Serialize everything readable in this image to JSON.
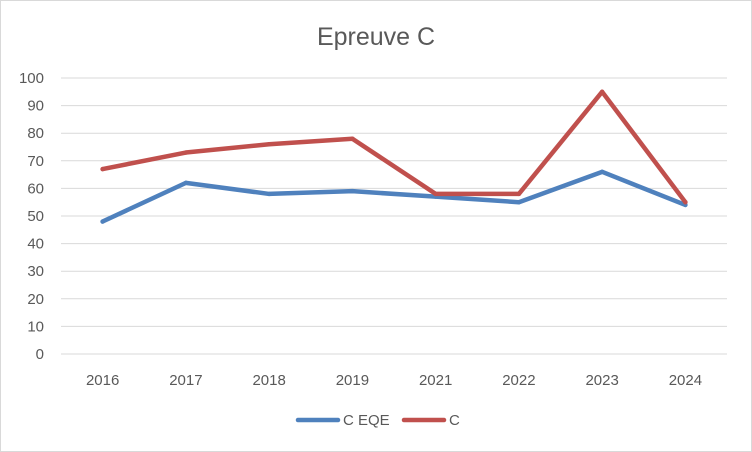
{
  "chart_data": {
    "type": "line",
    "title": "Epreuve C",
    "categories": [
      "2016",
      "2017",
      "2018",
      "2019",
      "2021",
      "2022",
      "2023",
      "2024"
    ],
    "ylim": [
      0,
      100
    ],
    "yticks": [
      0,
      10,
      20,
      30,
      40,
      50,
      60,
      70,
      80,
      90,
      100
    ],
    "grid": true,
    "legend_position": "bottom",
    "series": [
      {
        "name": "C EQE",
        "color": "#4f81bd",
        "values": [
          48,
          62,
          58,
          59,
          57,
          55,
          66,
          54
        ]
      },
      {
        "name": "C",
        "color": "#c0504d",
        "values": [
          67,
          73,
          76,
          78,
          58,
          58,
          95,
          55
        ]
      }
    ]
  }
}
